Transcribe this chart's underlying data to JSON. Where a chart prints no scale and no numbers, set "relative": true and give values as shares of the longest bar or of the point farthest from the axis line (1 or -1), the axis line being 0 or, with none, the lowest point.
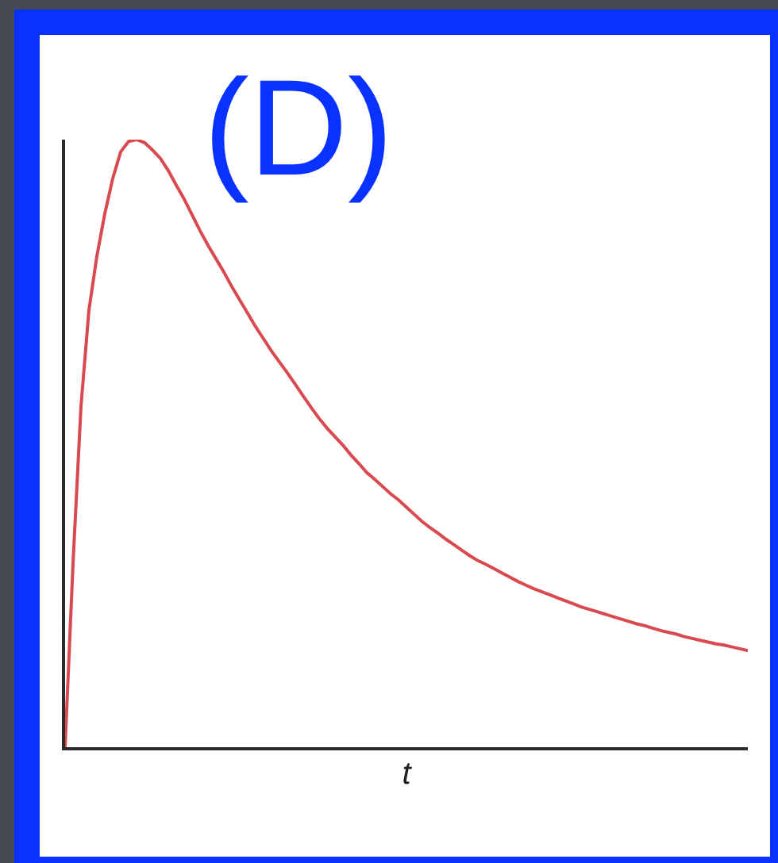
{
  "chart_data": {
    "type": "line",
    "title": "(D)",
    "xlabel": "t",
    "relative": true,
    "categories": [
      null,
      null,
      null,
      null,
      null,
      null,
      null,
      null,
      null,
      null,
      null,
      null,
      null,
      null,
      null,
      null,
      null,
      null,
      null,
      null,
      null,
      null,
      null,
      null,
      null,
      null,
      null,
      null,
      null,
      null,
      null,
      null,
      null,
      null,
      null,
      null,
      null,
      null,
      null,
      null,
      null,
      null,
      null,
      null,
      null,
      null,
      null,
      null,
      null,
      null,
      null,
      null,
      null,
      null,
      null,
      null,
      null,
      null,
      null,
      null,
      null,
      null,
      null,
      null,
      null,
      null,
      null,
      null,
      null,
      null,
      null,
      null,
      null,
      null,
      null,
      null,
      null,
      null,
      null,
      null,
      null,
      null,
      null,
      null,
      null,
      null,
      null
    ],
    "series": [
      {
        "color": "#d84a50",
        "values": [
          0,
          0.303,
          0.561,
          0.719,
          0.808,
          0.878,
          0.936,
          0.98,
          0.997,
          1,
          0.995,
          0.983,
          0.969,
          0.949,
          0.925,
          0.902,
          0.876,
          0.85,
          0.826,
          0.804,
          0.782,
          0.758,
          0.736,
          0.714,
          0.692,
          0.672,
          0.652,
          0.634,
          0.616,
          0.597,
          0.578,
          0.559,
          0.541,
          0.525,
          0.511,
          0.497,
          0.481,
          0.467,
          0.452,
          0.441,
          0.429,
          0.417,
          0.407,
          0.395,
          0.383,
          0.371,
          0.361,
          0.352,
          0.342,
          0.333,
          0.324,
          0.315,
          0.307,
          0.301,
          0.294,
          0.287,
          0.28,
          0.273,
          0.267,
          0.261,
          0.256,
          0.251,
          0.246,
          0.241,
          0.236,
          0.231,
          0.227,
          0.223,
          0.219,
          0.215,
          0.211,
          0.207,
          0.203,
          0.2,
          0.196,
          0.192,
          0.189,
          0.186,
          0.182,
          0.179,
          0.176,
          0.173,
          0.17,
          0.168,
          0.165,
          0.162,
          0.159
        ]
      }
    ]
  }
}
